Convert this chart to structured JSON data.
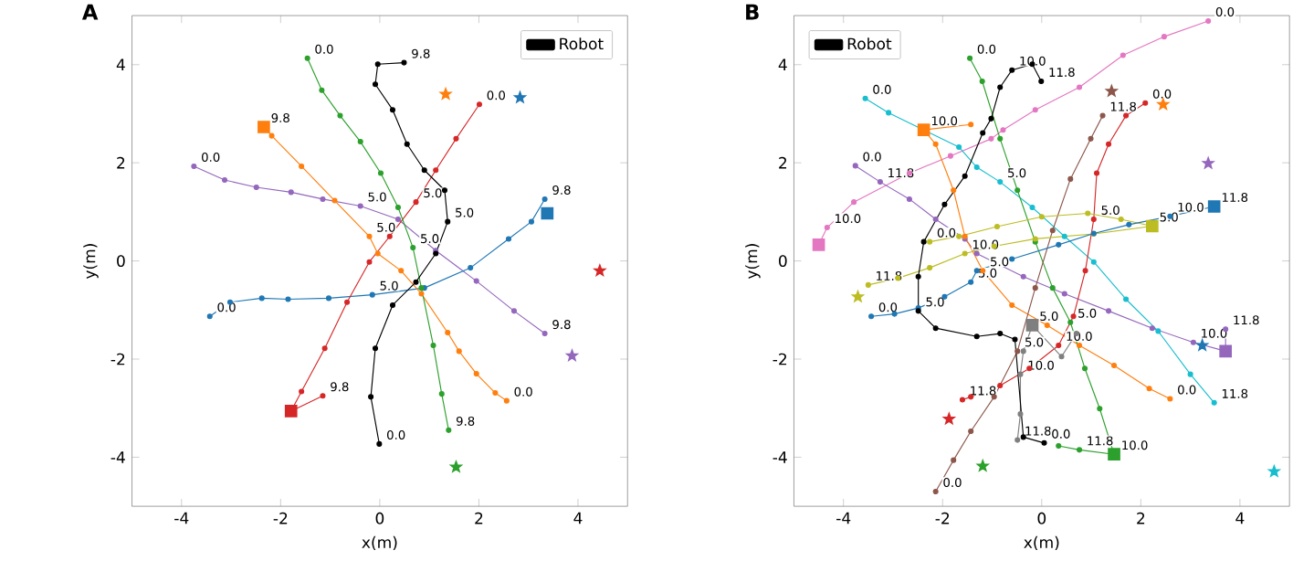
{
  "chart_data": [
    {
      "type": "line",
      "title": "A",
      "xlabel": "x(m)",
      "ylabel": "y(m)",
      "xlim": [
        -5,
        5
      ],
      "ylim": [
        -5,
        5
      ],
      "xticks": [
        -4,
        -2,
        0,
        2,
        4
      ],
      "yticks": [
        -4,
        -2,
        0,
        2,
        4
      ],
      "legend": "top right",
      "marker": "circle",
      "series": [
        {
          "color": "#9467bd",
          "x": [
            -3.75,
            -3.13,
            -2.49,
            -1.79,
            -1.15,
            -0.39,
            0.37,
            1.13,
            1.95,
            2.71,
            3.33
          ],
          "values": [
            1.93,
            1.65,
            1.5,
            1.4,
            1.26,
            1.12,
            0.85,
            0.21,
            -0.41,
            -1.02,
            -1.48
          ]
        },
        {
          "color": "#1f77b4",
          "x": [
            -3.43,
            -3.02,
            -2.38,
            -1.85,
            -1.03,
            -0.15,
            0.9,
            1.83,
            2.6,
            3.06,
            3.33
          ],
          "values": [
            -1.13,
            -0.84,
            -0.76,
            -0.78,
            -0.76,
            -0.69,
            -0.55,
            -0.14,
            0.45,
            0.8,
            1.26
          ]
        },
        {
          "color": "#ff7f0e",
          "x": [
            2.56,
            2.33,
            1.95,
            1.6,
            1.37,
            0.84,
            0.43,
            -0.04,
            -0.21,
            -0.91,
            -1.58,
            -2.18,
            -2.34
          ],
          "values": [
            -2.85,
            -2.69,
            -2.3,
            -1.84,
            -1.46,
            -0.67,
            -0.2,
            0.15,
            0.5,
            1.23,
            1.93,
            2.55,
            2.73
          ]
        },
        {
          "color": "#d62728",
          "x": [
            2.01,
            1.54,
            1.13,
            0.73,
            0.2,
            -0.21,
            -0.66,
            -1.11,
            -1.58,
            -1.79,
            -1.15
          ],
          "values": [
            3.19,
            2.49,
            1.85,
            1.2,
            0.5,
            -0.02,
            -0.84,
            -1.78,
            -2.66,
            -3.06,
            -2.75
          ]
        },
        {
          "color": "#2ca02c",
          "x": [
            -1.46,
            -1.17,
            -0.8,
            -0.39,
            0.02,
            0.37,
            0.67,
            0.84,
            1.08,
            1.25,
            1.39
          ],
          "values": [
            4.13,
            3.48,
            2.96,
            2.43,
            1.79,
            1.09,
            0.27,
            -0.55,
            -1.72,
            -2.71,
            -3.45
          ]
        },
        {
          "name": "Robot",
          "color": "#000000",
          "x": [
            -0.01,
            -0.18,
            -0.09,
            0.26,
            0.73,
            1.13,
            1.37,
            1.31,
            0.9,
            0.55,
            0.26,
            -0.09,
            -0.04,
            0.49
          ],
          "values": [
            -3.73,
            -2.77,
            -1.78,
            -0.9,
            -0.43,
            0.15,
            0.8,
            1.44,
            1.85,
            2.38,
            3.08,
            3.6,
            4.01,
            4.04
          ]
        },
        {
          "type": "scatter",
          "marker": "square",
          "x": [
            -2.34,
            -1.79,
            3.38
          ],
          "values": [
            2.73,
            -3.06,
            0.97
          ],
          "colors": [
            "#ff7f0e",
            "#d62728",
            "#1f77b4"
          ]
        },
        {
          "type": "scatter",
          "marker": "star",
          "x": [
            1.33,
            2.83,
            4.44,
            3.88,
            1.54
          ],
          "values": [
            3.4,
            3.33,
            -0.2,
            -1.93,
            -4.2
          ],
          "colors": [
            "#ff7f0e",
            "#1f77b4",
            "#d62728",
            "#9467bd",
            "#2ca02c"
          ]
        }
      ],
      "annotations": [
        {
          "text": "0.0",
          "x": -3.75,
          "y": 1.93
        },
        {
          "text": "5.0",
          "x": -0.39,
          "y": 1.12
        },
        {
          "text": "9.8",
          "x": 3.33,
          "y": -1.48
        },
        {
          "text": "0.0",
          "x": -3.43,
          "y": -1.13
        },
        {
          "text": "5.0",
          "x": -0.15,
          "y": -0.69
        },
        {
          "text": "9.8",
          "x": 3.33,
          "y": 1.26
        },
        {
          "text": "0.0",
          "x": 2.56,
          "y": -2.85
        },
        {
          "text": "5.0",
          "x": -0.21,
          "y": 0.5
        },
        {
          "text": "9.8",
          "x": -2.34,
          "y": 2.73
        },
        {
          "text": "0.0",
          "x": 2.01,
          "y": 3.19
        },
        {
          "text": "5.0",
          "x": 0.73,
          "y": 1.2
        },
        {
          "text": "9.8",
          "x": -1.15,
          "y": -2.75
        },
        {
          "text": "0.0",
          "x": -1.46,
          "y": 4.13
        },
        {
          "text": "5.0",
          "x": 0.67,
          "y": 0.27
        },
        {
          "text": "9.8",
          "x": 1.39,
          "y": -3.45
        },
        {
          "text": "0.0",
          "x": -0.01,
          "y": -3.73
        },
        {
          "text": "5.0",
          "x": 1.37,
          "y": 0.8
        },
        {
          "text": "9.8",
          "x": 0.49,
          "y": 4.04
        }
      ]
    },
    {
      "type": "line",
      "title": "B",
      "xlabel": "x(m)",
      "ylabel": "y(m)",
      "xlim": [
        -5,
        5
      ],
      "ylim": [
        -5,
        5
      ],
      "xticks": [
        -4,
        -2,
        0,
        2,
        4
      ],
      "yticks": [
        -4,
        -2,
        0,
        2,
        4
      ],
      "legend": "top left",
      "marker": "circle",
      "series": [
        {
          "color": "#e377c2",
          "x": [
            3.36,
            2.47,
            1.64,
            0.76,
            -0.13,
            -0.78,
            -1.02,
            -1.84,
            -2.67,
            -3.79,
            -4.33,
            -4.5
          ],
          "values": [
            4.89,
            4.57,
            4.19,
            3.54,
            3.08,
            2.67,
            2.49,
            2.14,
            1.79,
            1.2,
            0.68,
            0.33
          ]
        },
        {
          "color": "#9467bd",
          "x": [
            -3.76,
            -3.26,
            -2.67,
            -2.14,
            -1.55,
            -1.31,
            -0.37,
            0.46,
            1.35,
            2.23,
            3.06,
            3.71,
            3.71
          ],
          "values": [
            1.94,
            1.61,
            1.26,
            0.85,
            0.45,
            0.15,
            -0.32,
            -0.67,
            -1.02,
            -1.37,
            -1.66,
            -1.84,
            -1.39
          ]
        },
        {
          "color": "#17becf",
          "x": [
            -3.56,
            -3.09,
            -2.38,
            -1.67,
            -1.31,
            -0.84,
            -0.19,
            0.46,
            1.05,
            1.7,
            2.35,
            3.0,
            3.48
          ],
          "values": [
            3.31,
            3.02,
            2.67,
            2.32,
            1.91,
            1.61,
            1.09,
            0.5,
            -0.02,
            -0.78,
            -1.43,
            -2.31,
            -2.89
          ]
        },
        {
          "color": "#ff7f0e",
          "x": [
            2.59,
            2.17,
            1.46,
            0.76,
            0.11,
            -0.6,
            -1.19,
            -1.55,
            -1.78,
            -2.14,
            -2.38,
            -1.43
          ],
          "values": [
            -2.81,
            -2.6,
            -2.13,
            -1.72,
            -1.31,
            -0.9,
            -0.2,
            0.5,
            1.44,
            2.38,
            2.67,
            2.78
          ]
        },
        {
          "color": "#2ca02c",
          "x": [
            -1.45,
            -1.2,
            -0.84,
            -0.49,
            -0.13,
            0.22,
            0.58,
            0.87,
            1.17,
            1.46,
            0.76,
            0.34
          ],
          "values": [
            4.13,
            3.66,
            2.49,
            1.44,
            0.39,
            -0.55,
            -1.25,
            -2.19,
            -3.01,
            -3.94,
            -3.85,
            -3.77
          ]
        },
        {
          "color": "#d62728",
          "x": [
            2.09,
            1.7,
            1.35,
            1.11,
            1.05,
            0.88,
            0.64,
            0.34,
            -0.25,
            -0.84,
            -1.43,
            -1.6
          ],
          "values": [
            3.22,
            2.96,
            2.38,
            1.79,
            0.85,
            -0.2,
            -1.13,
            -1.72,
            -2.19,
            -2.54,
            -2.77,
            -2.83
          ]
        },
        {
          "color": "#8c564b",
          "x": [
            -2.14,
            -1.78,
            -1.43,
            -0.96,
            -0.49,
            -0.13,
            0.22,
            0.58,
            0.99,
            1.23
          ],
          "values": [
            -4.7,
            -4.06,
            -3.47,
            -2.77,
            -1.84,
            -0.55,
            0.62,
            1.67,
            2.49,
            2.96
          ]
        },
        {
          "color": "#7f7f7f",
          "x": [
            0.7,
            0.4,
            -0.19,
            -0.37,
            -0.43,
            -0.43,
            -0.49
          ],
          "values": [
            -1.48,
            -1.95,
            -1.31,
            -1.84,
            -2.31,
            -3.12,
            -3.65
          ]
        },
        {
          "color": "#bcbd22",
          "x": [
            -2.26,
            -1.67,
            -0.9,
            0,
            0.93,
            1.6,
            2.23,
            1.05,
            -0.13,
            -0.96,
            -1.55,
            -2.26,
            -2.9,
            -3.5
          ],
          "values": [
            0.39,
            0.5,
            0.7,
            0.9,
            0.97,
            0.85,
            0.71,
            0.55,
            0.45,
            0.3,
            0.15,
            -0.14,
            -0.35,
            -0.49
          ]
        },
        {
          "color": "#1f77b4",
          "x": [
            -3.44,
            -2.97,
            -2.49,
            -1.96,
            -1.43,
            -1.31,
            -0.6,
            0.34,
            1.05,
            1.76,
            2.59,
            3.48
          ],
          "values": [
            -1.13,
            -1.08,
            -0.96,
            -0.73,
            -0.43,
            -0.2,
            0.04,
            0.33,
            0.56,
            0.74,
            0.91,
            1.11
          ]
        },
        {
          "name": "Robot",
          "color": "#000000",
          "x": [
            0.05,
            -0.37,
            -0.54,
            -0.84,
            -1.31,
            -2.14,
            -2.49,
            -2.49,
            -2.38,
            -1.96,
            -1.55,
            -1.19,
            -1.02,
            -0.84,
            -0.6,
            -0.19,
            -0.01
          ],
          "values": [
            -3.71,
            -3.59,
            -1.6,
            -1.48,
            -1.54,
            -1.37,
            -1.02,
            -0.32,
            0.39,
            1.15,
            1.73,
            2.61,
            2.9,
            3.54,
            3.89,
            4.01,
            3.66
          ]
        },
        {
          "type": "scatter",
          "marker": "square",
          "x": [
            -4.5,
            -2.38,
            3.48,
            3.71,
            1.46,
            2.23,
            -0.19
          ],
          "values": [
            0.33,
            2.67,
            1.11,
            -1.84,
            -3.94,
            0.71,
            -1.31
          ],
          "colors": [
            "#e377c2",
            "#ff7f0e",
            "#1f77b4",
            "#9467bd",
            "#2ca02c",
            "#bcbd22",
            "#7f7f7f"
          ]
        },
        {
          "type": "scatter",
          "marker": "star",
          "x": [
            2.45,
            3.36,
            3.24,
            4.69,
            -1.87,
            -1.19,
            1.41,
            -3.71
          ],
          "values": [
            3.19,
            1.99,
            -1.72,
            -4.29,
            -3.22,
            -4.18,
            3.46,
            -0.73
          ],
          "colors": [
            "#ff7f0e",
            "#9467bd",
            "#1f77b4",
            "#17becf",
            "#d62728",
            "#2ca02c",
            "#8c564b",
            "#bcbd22"
          ]
        }
      ],
      "annotations": [
        {
          "text": "0.0",
          "x": 3.36,
          "y": 4.89
        },
        {
          "text": "10.0",
          "x": -4.33,
          "y": 0.68
        },
        {
          "text": "11.8",
          "x": -3.26,
          "y": 1.61
        },
        {
          "text": "0.0",
          "x": -3.76,
          "y": 1.94
        },
        {
          "text": "10.0",
          "x": 3.06,
          "y": -1.66
        },
        {
          "text": "11.8",
          "x": 3.71,
          "y": -1.39
        },
        {
          "text": "0.0",
          "x": -3.56,
          "y": 3.31
        },
        {
          "text": "5.0",
          "x": -0.84,
          "y": 1.61
        },
        {
          "text": "11.8",
          "x": 3.48,
          "y": -2.89
        },
        {
          "text": "0.0",
          "x": 2.59,
          "y": -2.81
        },
        {
          "text": "5.0",
          "x": -1.19,
          "y": -0.2
        },
        {
          "text": "10.0",
          "x": -2.38,
          "y": 2.67
        },
        {
          "text": "0.0",
          "x": -1.45,
          "y": 4.13
        },
        {
          "text": "5.0",
          "x": 0.58,
          "y": -1.25
        },
        {
          "text": "10.0",
          "x": 1.46,
          "y": -3.94
        },
        {
          "text": "11.8",
          "x": 0.76,
          "y": -3.85
        },
        {
          "text": "0.0",
          "x": 2.09,
          "y": 3.22
        },
        {
          "text": "5.0",
          "x": 1.05,
          "y": 0.85
        },
        {
          "text": "10.0",
          "x": 0.34,
          "y": -1.72
        },
        {
          "text": "11.8",
          "x": -1.6,
          "y": -2.83
        },
        {
          "text": "0.0",
          "x": -2.14,
          "y": -4.7
        },
        {
          "text": "5.0",
          "x": -0.49,
          "y": -1.84
        },
        {
          "text": "11.8",
          "x": 1.23,
          "y": 2.96
        },
        {
          "text": "5.0",
          "x": -0.19,
          "y": -1.31
        },
        {
          "text": "10.0",
          "x": -0.43,
          "y": -2.31
        },
        {
          "text": "11.8",
          "x": -0.49,
          "y": -3.65
        },
        {
          "text": "0.0",
          "x": -2.26,
          "y": 0.39
        },
        {
          "text": "5.0",
          "x": 2.23,
          "y": 0.71
        },
        {
          "text": "10.0",
          "x": -1.55,
          "y": 0.15
        },
        {
          "text": "11.8",
          "x": -3.5,
          "y": -0.49
        },
        {
          "text": "0.0",
          "x": -3.44,
          "y": -1.13
        },
        {
          "text": "5.0",
          "x": -1.43,
          "y": -0.43
        },
        {
          "text": "10.0",
          "x": 2.59,
          "y": 0.91
        },
        {
          "text": "11.8",
          "x": 3.48,
          "y": 1.11
        },
        {
          "text": "0.0",
          "x": 0.05,
          "y": -3.71
        },
        {
          "text": "5.0",
          "x": -2.49,
          "y": -1.02
        },
        {
          "text": "10.0",
          "x": -0.6,
          "y": 3.89
        },
        {
          "text": "11.8",
          "x": -0.01,
          "y": 3.66
        }
      ]
    }
  ]
}
